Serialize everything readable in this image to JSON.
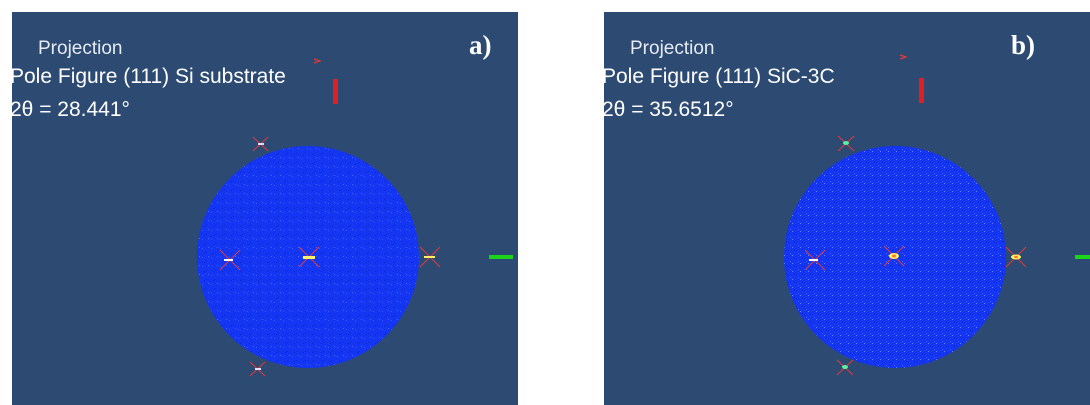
{
  "colors": {
    "background": "#2c4a72",
    "disk": "#1436f2",
    "marker": "#e23a3a",
    "z_axis": "#e21e1e",
    "x_axis": "#1bd51b"
  },
  "panels": [
    {
      "id": "a",
      "letter": "a)",
      "projection": "Projection",
      "pole_figure": "Pole Figure (111) Si substrate",
      "two_theta": "2θ = 28.441°"
    },
    {
      "id": "b",
      "letter": "b)",
      "projection": "Projection",
      "pole_figure": "Pole Figure (111) SiC-3C",
      "two_theta": "2θ = 35.6512°"
    }
  ]
}
